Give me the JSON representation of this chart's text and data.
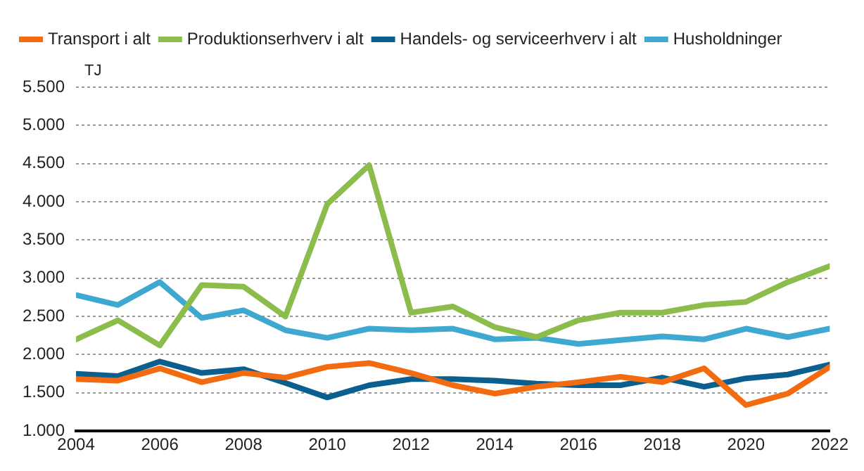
{
  "chart_data": {
    "type": "line",
    "ylabel": "TJ",
    "x": [
      2004,
      2005,
      2006,
      2007,
      2008,
      2009,
      2010,
      2011,
      2012,
      2013,
      2014,
      2015,
      2016,
      2017,
      2018,
      2019,
      2020,
      2021,
      2022
    ],
    "series": [
      {
        "name": "Transport i alt",
        "color": "#f26b10",
        "values": [
          1680,
          1660,
          1820,
          1640,
          1760,
          1700,
          1840,
          1890,
          1760,
          1600,
          1490,
          1580,
          1640,
          1710,
          1640,
          1820,
          1340,
          1490,
          1840
        ]
      },
      {
        "name": "Produktionserhverv i alt",
        "color": "#8cbc4c",
        "values": [
          2200,
          2450,
          2120,
          2910,
          2890,
          2500,
          3970,
          4480,
          2550,
          2630,
          2360,
          2230,
          2450,
          2550,
          2550,
          2650,
          2690,
          2950,
          3160
        ]
      },
      {
        "name": "Handels- og serviceerhverv i alt",
        "color": "#0b5f8e",
        "values": [
          1750,
          1720,
          1910,
          1760,
          1810,
          1630,
          1440,
          1600,
          1680,
          1680,
          1660,
          1620,
          1600,
          1600,
          1700,
          1580,
          1690,
          1740,
          1870
        ]
      },
      {
        "name": "Husholdninger",
        "color": "#3fa8d0",
        "values": [
          2780,
          2650,
          2950,
          2480,
          2580,
          2320,
          2220,
          2340,
          2320,
          2340,
          2200,
          2220,
          2140,
          2190,
          2240,
          2200,
          2340,
          2230,
          2340
        ]
      }
    ],
    "xlim": [
      2004,
      2022
    ],
    "xticks": [
      2004,
      2006,
      2008,
      2010,
      2012,
      2014,
      2016,
      2018,
      2020,
      2022
    ],
    "ylim": [
      1000,
      5500
    ],
    "yticks": [
      {
        "value": 1000,
        "label": "1.000"
      },
      {
        "value": 1500,
        "label": "1.500"
      },
      {
        "value": 2000,
        "label": "2.000"
      },
      {
        "value": 2500,
        "label": "2.500"
      },
      {
        "value": 3000,
        "label": "3.000"
      },
      {
        "value": 3500,
        "label": "3.500"
      },
      {
        "value": 4000,
        "label": "4.000"
      },
      {
        "value": 4500,
        "label": "4.500"
      },
      {
        "value": 5000,
        "label": "5.000"
      },
      {
        "value": 5500,
        "label": "5.500"
      }
    ],
    "grid": "y",
    "legend": "top",
    "marker": "none",
    "line_style": "solid"
  }
}
